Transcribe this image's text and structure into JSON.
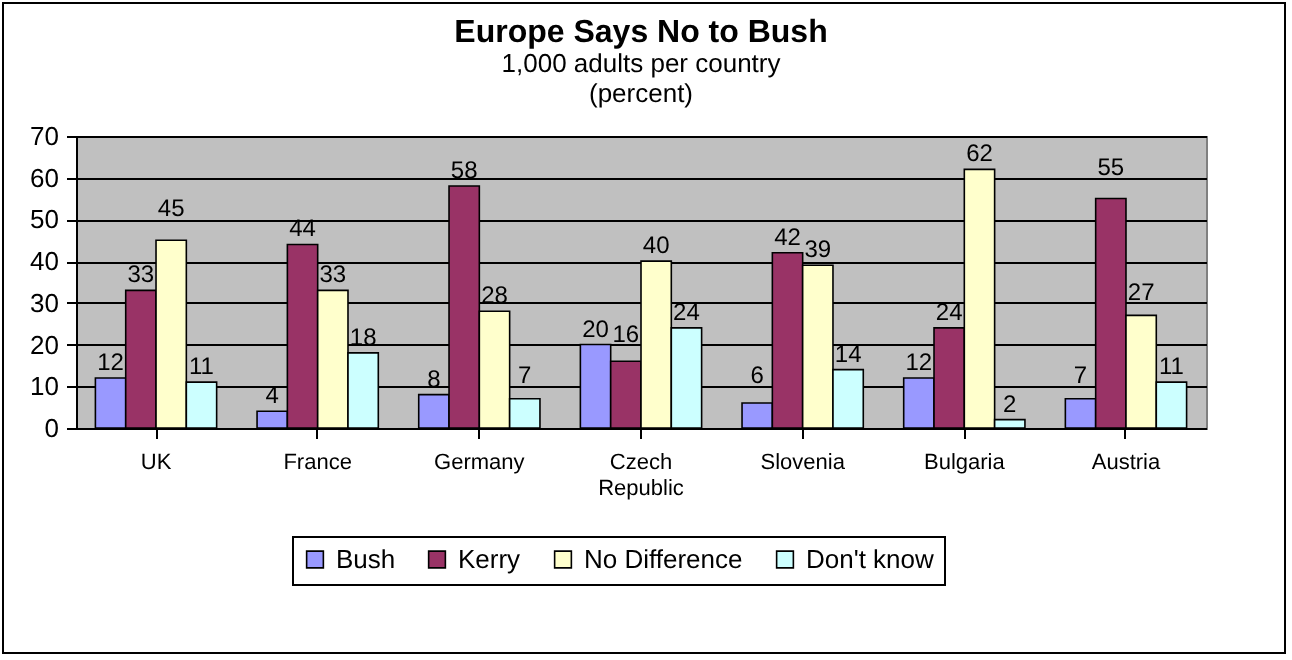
{
  "chart_data": {
    "type": "bar",
    "title": "Europe Says No to Bush",
    "subtitle": "1,000 adults per country\n(percent)",
    "categories": [
      "UK",
      "France",
      "Germany",
      "Czech Republic",
      "Slovenia",
      "Bulgaria",
      "Austria"
    ],
    "series": [
      {
        "name": "Bush",
        "color": "#9999ff",
        "values": [
          12,
          4,
          8,
          20,
          6,
          12,
          7
        ]
      },
      {
        "name": "Kerry",
        "color": "#993366",
        "values": [
          33,
          44,
          58,
          16,
          42,
          24,
          55
        ]
      },
      {
        "name": "No Difference",
        "color": "#ffffcc",
        "values": [
          45,
          33,
          28,
          40,
          39,
          62,
          27
        ]
      },
      {
        "name": "Don't know",
        "color": "#ccffff",
        "values": [
          11,
          18,
          7,
          24,
          14,
          2,
          11
        ]
      }
    ],
    "ylim": [
      0,
      70
    ],
    "yticks": [
      0,
      10,
      20,
      30,
      40,
      50,
      60,
      70
    ],
    "grid": "y",
    "legend": "bottom",
    "data_labels": true
  }
}
